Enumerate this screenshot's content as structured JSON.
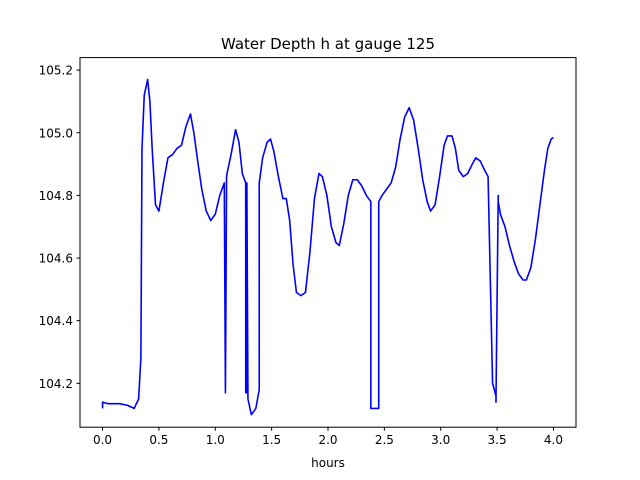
{
  "chart_data": {
    "type": "line",
    "title": "Water Depth h at gauge 125",
    "xlabel": "hours",
    "ylabel": "",
    "xlim": [
      -0.2,
      4.2
    ],
    "ylim": [
      104.06,
      105.24
    ],
    "xticks": [
      0.0,
      0.5,
      1.0,
      1.5,
      2.0,
      2.5,
      3.0,
      3.5,
      4.0
    ],
    "xtick_labels": [
      "0.0",
      "0.5",
      "1.0",
      "1.5",
      "2.0",
      "2.5",
      "3.0",
      "3.5",
      "4.0"
    ],
    "yticks": [
      104.2,
      104.4,
      104.6,
      104.8,
      105.0,
      105.2
    ],
    "ytick_labels": [
      "104.2",
      "104.4",
      "104.6",
      "104.8",
      "105.0",
      "105.2"
    ],
    "grid": false,
    "series": [
      {
        "color": "#0000ff",
        "x": [
          0.0,
          0.0,
          0.05,
          0.15,
          0.22,
          0.28,
          0.32,
          0.34,
          0.35,
          0.35,
          0.37,
          0.4,
          0.42,
          0.44,
          0.47,
          0.5,
          0.54,
          0.58,
          0.62,
          0.66,
          0.7,
          0.74,
          0.78,
          0.81,
          0.84,
          0.88,
          0.92,
          0.96,
          1.0,
          1.04,
          1.08,
          1.09,
          1.09,
          1.1,
          1.1,
          1.11,
          1.14,
          1.18,
          1.21,
          1.24,
          1.27,
          1.27,
          1.28,
          1.28,
          1.29,
          1.32,
          1.36,
          1.39,
          1.39,
          1.42,
          1.46,
          1.49,
          1.52,
          1.56,
          1.6,
          1.63,
          1.66,
          1.69,
          1.72,
          1.76,
          1.8,
          1.84,
          1.88,
          1.92,
          1.95,
          1.99,
          2.03,
          2.07,
          2.1,
          2.14,
          2.18,
          2.22,
          2.26,
          2.3,
          2.34,
          2.38,
          2.38,
          2.4,
          2.43,
          2.45,
          2.45,
          2.48,
          2.52,
          2.56,
          2.6,
          2.64,
          2.68,
          2.72,
          2.76,
          2.8,
          2.84,
          2.88,
          2.91,
          2.95,
          2.99,
          3.03,
          3.06,
          3.1,
          3.13,
          3.16,
          3.2,
          3.24,
          3.28,
          3.31,
          3.35,
          3.39,
          3.42,
          3.46,
          3.49,
          3.49,
          3.51,
          3.51,
          3.51,
          3.53,
          3.57,
          3.61,
          3.65,
          3.69,
          3.73,
          3.76,
          3.8,
          3.84,
          3.88,
          3.92,
          3.95,
          3.98,
          4.0
        ],
        "y": [
          104.12,
          104.14,
          104.135,
          104.135,
          104.13,
          104.12,
          104.15,
          104.28,
          104.95,
          104.95,
          105.12,
          105.17,
          105.1,
          104.95,
          104.77,
          104.75,
          104.84,
          104.92,
          104.93,
          104.95,
          104.96,
          105.02,
          105.06,
          105.0,
          104.92,
          104.82,
          104.75,
          104.72,
          104.74,
          104.8,
          104.84,
          104.17,
          104.17,
          104.84,
          104.86,
          104.88,
          104.93,
          105.01,
          104.97,
          104.87,
          104.84,
          104.17,
          104.17,
          104.84,
          104.15,
          104.1,
          104.12,
          104.18,
          104.84,
          104.92,
          104.97,
          104.98,
          104.94,
          104.86,
          104.79,
          104.79,
          104.72,
          104.58,
          104.49,
          104.48,
          104.49,
          104.62,
          104.79,
          104.87,
          104.86,
          104.8,
          104.7,
          104.65,
          104.64,
          104.71,
          104.8,
          104.85,
          104.85,
          104.83,
          104.8,
          104.78,
          104.12,
          104.12,
          104.12,
          104.12,
          104.78,
          104.8,
          104.82,
          104.84,
          104.89,
          104.98,
          105.05,
          105.08,
          105.04,
          104.95,
          104.85,
          104.78,
          104.75,
          104.77,
          104.86,
          104.96,
          104.99,
          104.99,
          104.95,
          104.88,
          104.86,
          104.87,
          104.9,
          104.92,
          104.91,
          104.88,
          104.86,
          104.2,
          104.16,
          104.14,
          104.8,
          104.8,
          104.78,
          104.74,
          104.7,
          104.64,
          104.59,
          104.55,
          104.53,
          104.53,
          104.57,
          104.66,
          104.77,
          104.88,
          104.95,
          104.98,
          104.985
        ]
      }
    ]
  }
}
